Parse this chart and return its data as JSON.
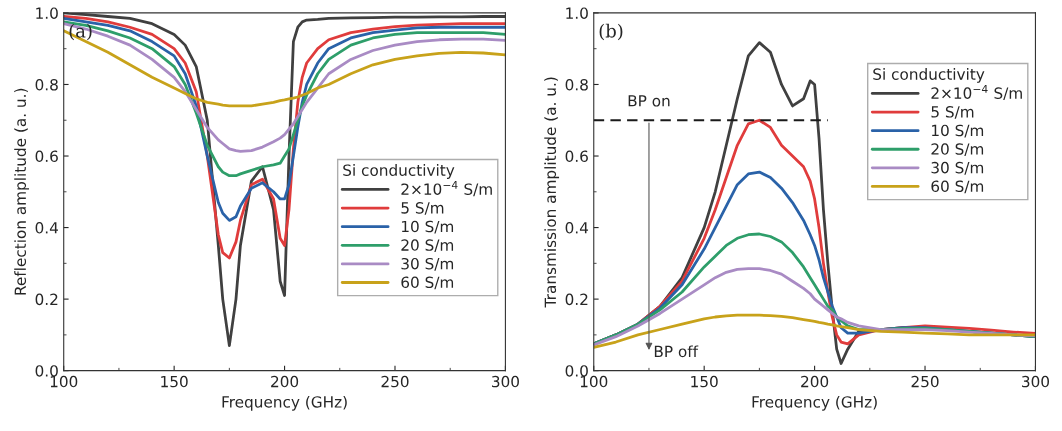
{
  "chart_data": [
    {
      "type": "line",
      "xlabel": "Frequency (GHz)",
      "ylabel": "Reflection amplitude (a. u.)",
      "legend_title": "Si conductivity",
      "legend": "right",
      "grid": false,
      "marker": "none",
      "line_style": "solid",
      "annotations": [
        "(a)"
      ],
      "xlim": [
        100,
        300
      ],
      "xticks": [
        100,
        150,
        200,
        250,
        300
      ],
      "ylim": [
        0,
        1.0
      ],
      "yticks": [
        {
          "value": 0,
          "label": "0.0"
        },
        {
          "value": 0.2,
          "label": "0.2"
        },
        {
          "value": 0.4,
          "label": "0.4"
        },
        {
          "value": 0.6,
          "label": "0.6"
        },
        {
          "value": 0.8,
          "label": "0.8"
        },
        {
          "value": 1.0,
          "label": "1.0"
        }
      ],
      "x": [
        100,
        110,
        120,
        130,
        140,
        150,
        155,
        160,
        165,
        170,
        172,
        175,
        178,
        180,
        185,
        190,
        195,
        198,
        200,
        202,
        204,
        206,
        208,
        210,
        215,
        220,
        230,
        240,
        250,
        260,
        270,
        280,
        290,
        300
      ],
      "series": [
        {
          "name": "2×10$^{−4}$ S/m",
          "color": "#404040",
          "values": [
            1.0,
            0.995,
            0.99,
            0.985,
            0.97,
            0.94,
            0.91,
            0.85,
            0.7,
            0.35,
            0.2,
            0.07,
            0.2,
            0.35,
            0.53,
            0.57,
            0.45,
            0.25,
            0.21,
            0.6,
            0.92,
            0.96,
            0.975,
            0.98,
            0.982,
            0.985,
            0.986,
            0.987,
            0.988,
            0.988,
            0.989,
            0.989,
            0.99,
            0.99
          ]
        },
        {
          "name": "5 S/m",
          "color": "#e03c3c",
          "values": [
            0.99,
            0.985,
            0.975,
            0.96,
            0.94,
            0.9,
            0.86,
            0.78,
            0.6,
            0.38,
            0.33,
            0.315,
            0.36,
            0.42,
            0.52,
            0.535,
            0.48,
            0.37,
            0.35,
            0.45,
            0.62,
            0.75,
            0.82,
            0.86,
            0.9,
            0.925,
            0.945,
            0.955,
            0.962,
            0.966,
            0.968,
            0.97,
            0.97,
            0.97
          ]
        },
        {
          "name": "10 S/m",
          "color": "#2a62a8",
          "values": [
            0.985,
            0.975,
            0.965,
            0.95,
            0.92,
            0.88,
            0.83,
            0.74,
            0.6,
            0.47,
            0.44,
            0.42,
            0.43,
            0.46,
            0.51,
            0.525,
            0.5,
            0.48,
            0.48,
            0.52,
            0.6,
            0.68,
            0.75,
            0.8,
            0.86,
            0.9,
            0.93,
            0.945,
            0.952,
            0.958,
            0.96,
            0.96,
            0.96,
            0.96
          ]
        },
        {
          "name": "20 S/m",
          "color": "#2e9e6a",
          "values": [
            0.975,
            0.965,
            0.95,
            0.93,
            0.9,
            0.85,
            0.8,
            0.72,
            0.63,
            0.57,
            0.555,
            0.545,
            0.545,
            0.55,
            0.56,
            0.57,
            0.575,
            0.58,
            0.6,
            0.62,
            0.66,
            0.7,
            0.74,
            0.77,
            0.83,
            0.87,
            0.91,
            0.93,
            0.94,
            0.945,
            0.945,
            0.945,
            0.945,
            0.94
          ]
        },
        {
          "name": "30 S/m",
          "color": "#a98bc4",
          "values": [
            0.97,
            0.955,
            0.935,
            0.91,
            0.87,
            0.82,
            0.78,
            0.73,
            0.68,
            0.645,
            0.635,
            0.62,
            0.615,
            0.613,
            0.615,
            0.625,
            0.64,
            0.65,
            0.66,
            0.675,
            0.69,
            0.71,
            0.73,
            0.75,
            0.79,
            0.83,
            0.87,
            0.895,
            0.91,
            0.92,
            0.925,
            0.927,
            0.927,
            0.923
          ]
        },
        {
          "name": "60 S/m",
          "color": "#c8a21a",
          "values": [
            0.95,
            0.92,
            0.89,
            0.855,
            0.82,
            0.79,
            0.775,
            0.76,
            0.75,
            0.745,
            0.742,
            0.74,
            0.74,
            0.74,
            0.74,
            0.745,
            0.75,
            0.755,
            0.757,
            0.76,
            0.762,
            0.765,
            0.77,
            0.775,
            0.79,
            0.8,
            0.83,
            0.855,
            0.87,
            0.88,
            0.887,
            0.89,
            0.888,
            0.883
          ]
        }
      ]
    },
    {
      "type": "line",
      "xlabel": "Frequency (GHz)",
      "ylabel": "Transmission amplitude (a. u.)",
      "legend_title": "Si conductivity",
      "legend": "top right",
      "grid": false,
      "marker": "none",
      "line_style": "solid",
      "annotations": [
        "(b)",
        {
          "text": "BP on",
          "x": 125,
          "y": 0.7
        },
        "BP off"
      ],
      "xlim": [
        100,
        300
      ],
      "xticks": [
        100,
        150,
        200,
        250,
        300
      ],
      "ylim": [
        0,
        1.0
      ],
      "yticks": [
        {
          "value": 0,
          "label": "0.0"
        },
        {
          "value": 0.2,
          "label": "0.2"
        },
        {
          "value": 0.4,
          "label": "0.4"
        },
        {
          "value": 0.6,
          "label": "0.6"
        },
        {
          "value": 0.8,
          "label": "0.8"
        },
        {
          "value": 1.0,
          "label": "1.0"
        }
      ],
      "x": [
        100,
        110,
        120,
        130,
        140,
        150,
        155,
        160,
        165,
        170,
        175,
        180,
        185,
        190,
        195,
        198,
        200,
        202,
        204,
        206,
        208,
        210,
        212,
        215,
        220,
        230,
        240,
        250,
        260,
        270,
        280,
        290,
        300
      ],
      "series": [
        {
          "name": "2×10$^{−4}$ S/m",
          "color": "#404040",
          "values": [
            0.075,
            0.1,
            0.13,
            0.18,
            0.26,
            0.4,
            0.5,
            0.63,
            0.76,
            0.88,
            0.917,
            0.89,
            0.8,
            0.74,
            0.76,
            0.81,
            0.8,
            0.65,
            0.45,
            0.3,
            0.17,
            0.06,
            0.02,
            0.06,
            0.11,
            0.115,
            0.12,
            0.12,
            0.115,
            0.11,
            0.105,
            0.1,
            0.095
          ]
        },
        {
          "name": "5 S/m",
          "color": "#e03c3c",
          "values": [
            0.075,
            0.1,
            0.13,
            0.18,
            0.25,
            0.37,
            0.45,
            0.54,
            0.63,
            0.69,
            0.7,
            0.68,
            0.63,
            0.6,
            0.57,
            0.53,
            0.48,
            0.4,
            0.3,
            0.22,
            0.15,
            0.1,
            0.08,
            0.075,
            0.1,
            0.115,
            0.12,
            0.125,
            0.122,
            0.118,
            0.113,
            0.108,
            0.104
          ]
        },
        {
          "name": "10 S/m",
          "color": "#2a62a8",
          "values": [
            0.075,
            0.1,
            0.13,
            0.175,
            0.24,
            0.34,
            0.4,
            0.46,
            0.52,
            0.55,
            0.555,
            0.54,
            0.51,
            0.47,
            0.42,
            0.38,
            0.35,
            0.31,
            0.26,
            0.22,
            0.18,
            0.15,
            0.12,
            0.105,
            0.105,
            0.115,
            0.12,
            0.12,
            0.115,
            0.11,
            0.105,
            0.1,
            0.095
          ]
        },
        {
          "name": "20 S/m",
          "color": "#2e9e6a",
          "values": [
            0.075,
            0.1,
            0.13,
            0.17,
            0.22,
            0.29,
            0.32,
            0.35,
            0.37,
            0.38,
            0.382,
            0.375,
            0.36,
            0.33,
            0.29,
            0.26,
            0.24,
            0.22,
            0.2,
            0.18,
            0.17,
            0.15,
            0.14,
            0.125,
            0.115,
            0.115,
            0.118,
            0.118,
            0.115,
            0.11,
            0.105,
            0.1,
            0.095
          ]
        },
        {
          "name": "30 S/m",
          "color": "#a98bc4",
          "values": [
            0.072,
            0.095,
            0.125,
            0.16,
            0.2,
            0.24,
            0.26,
            0.275,
            0.283,
            0.285,
            0.285,
            0.28,
            0.27,
            0.25,
            0.23,
            0.215,
            0.2,
            0.19,
            0.18,
            0.17,
            0.16,
            0.15,
            0.145,
            0.135,
            0.125,
            0.115,
            0.115,
            0.115,
            0.112,
            0.108,
            0.104,
            0.1,
            0.097
          ]
        },
        {
          "name": "60 S/m",
          "color": "#c8a21a",
          "values": [
            0.065,
            0.08,
            0.1,
            0.115,
            0.13,
            0.145,
            0.15,
            0.153,
            0.155,
            0.155,
            0.155,
            0.154,
            0.152,
            0.148,
            0.143,
            0.14,
            0.138,
            0.135,
            0.133,
            0.13,
            0.128,
            0.125,
            0.123,
            0.12,
            0.115,
            0.11,
            0.108,
            0.105,
            0.103,
            0.1,
            0.1,
            0.1,
            0.1
          ]
        },
        {
          "type": "line",
          "x": [
            100,
            206
          ],
          "values": [
            0.7,
            0.7
          ],
          "color": "#1a1a1a",
          "line_style": "dashed"
        }
      ]
    }
  ]
}
